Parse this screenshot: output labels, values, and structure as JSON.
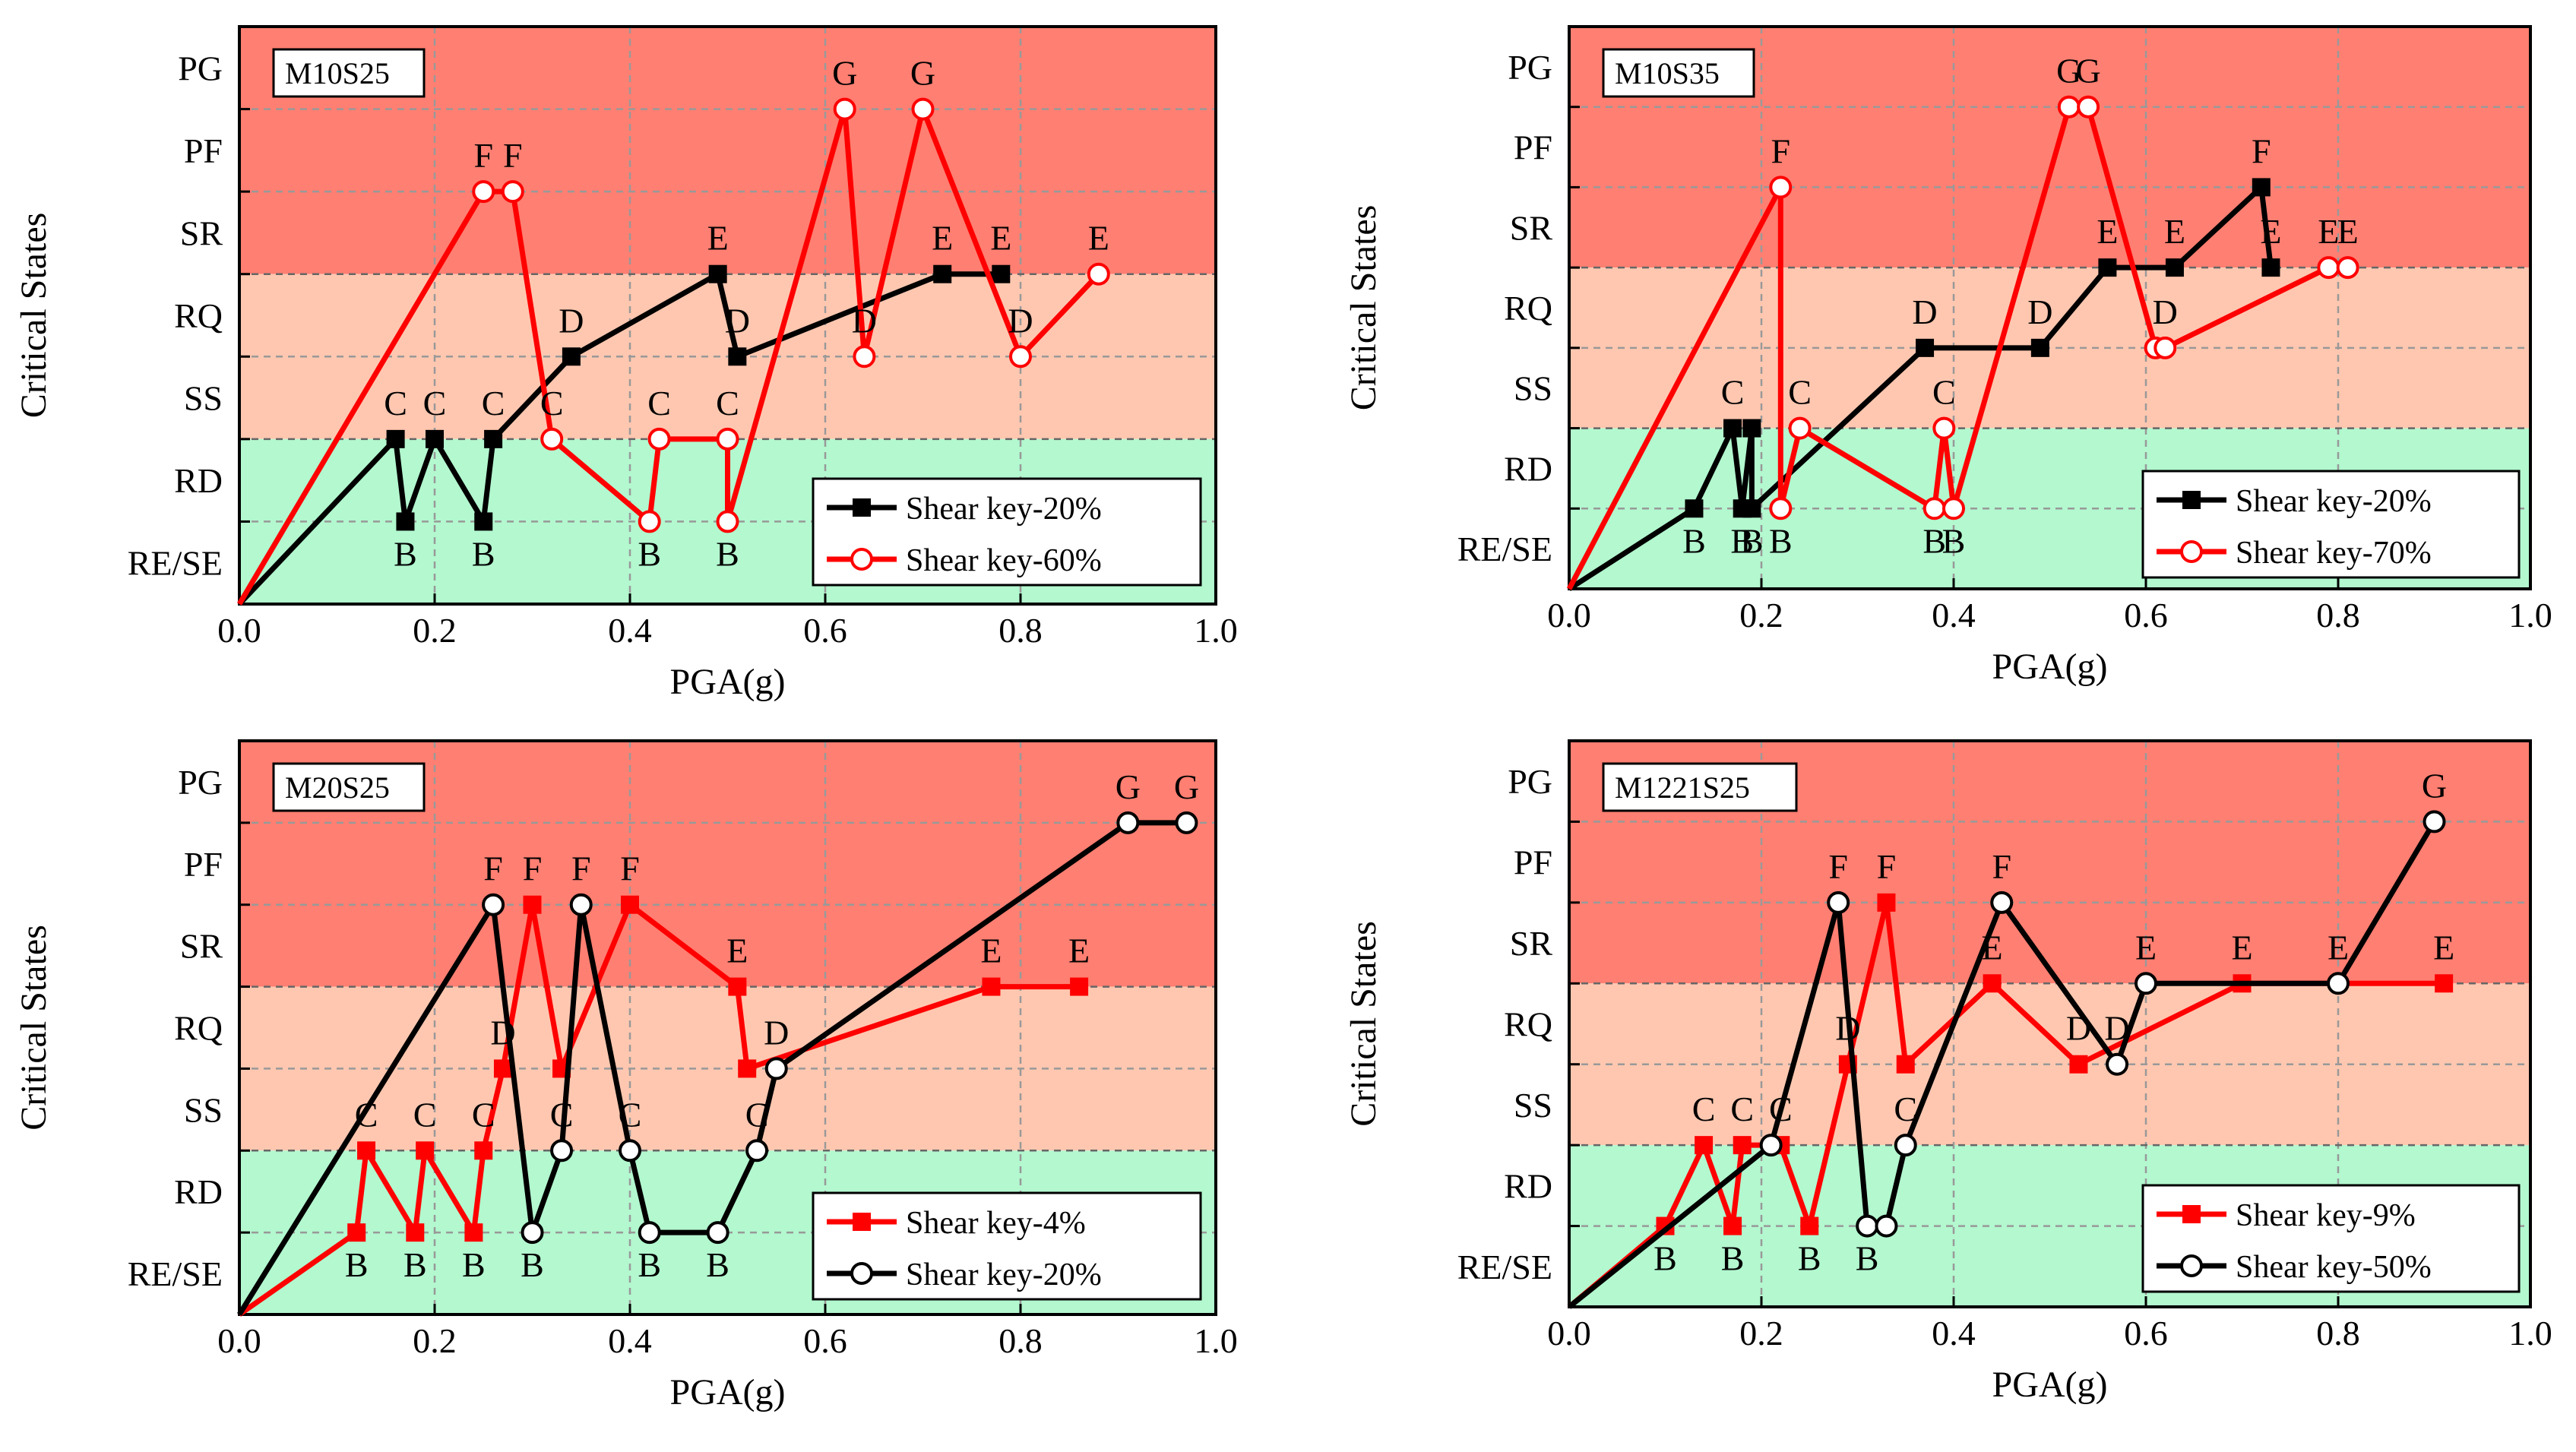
{
  "colors": {
    "band_top": "#ff7f72",
    "band_mid": "#ffc7b0",
    "band_bottom": "#b3f8cf",
    "red": "#ff0000",
    "black": "#000000",
    "grid": "#999999"
  },
  "states": [
    "RE/SE",
    "RD",
    "SS",
    "RQ",
    "SR",
    "PF",
    "PG"
  ],
  "chart_data": [
    {
      "type": "line",
      "title": "M10S25",
      "xlabel": "PGA(g)",
      "ylabel": "Critical States",
      "xlim": [
        0,
        1.0
      ],
      "x_ticks": [
        "0.0",
        "0.2",
        "0.4",
        "0.6",
        "0.8",
        "1.0"
      ],
      "y_ticks": [
        "RE/SE",
        "RD",
        "SS",
        "RQ",
        "SR",
        "PF",
        "PG"
      ],
      "grid": true,
      "legend_position": "bottom-right",
      "series": [
        {
          "name": "Shear key-20%",
          "color": "#000000",
          "marker": "square",
          "x": [
            0,
            0.16,
            0.17,
            0.2,
            0.25,
            0.26,
            0.34,
            0.49,
            0.51,
            0.72,
            0.78
          ],
          "y": [
            0,
            2,
            1,
            2,
            1,
            2,
            3,
            4,
            3,
            4,
            4
          ],
          "labels": [
            "",
            "C",
            "B",
            "C",
            "B",
            "C",
            "D",
            "E",
            "D",
            "E",
            "E"
          ]
        },
        {
          "name": "Shear key-60%",
          "color": "#ff0000",
          "marker": "circle",
          "x": [
            0,
            0.25,
            0.28,
            0.32,
            0.42,
            0.43,
            0.5,
            0.5,
            0.62,
            0.64,
            0.7,
            0.8,
            0.88
          ],
          "y": [
            0,
            5,
            5,
            2,
            1,
            2,
            2,
            1,
            6,
            3,
            6,
            3,
            4
          ],
          "labels": [
            "",
            "F",
            "F",
            "C",
            "B",
            "C",
            "C",
            "B",
            "G",
            "D",
            "G",
            "D",
            "E"
          ]
        }
      ]
    },
    {
      "type": "line",
      "title": "M10S35",
      "xlabel": "PGA(g)",
      "ylabel": "Critical States",
      "xlim": [
        0,
        1.0
      ],
      "x_ticks": [
        "0.0",
        "0.2",
        "0.4",
        "0.6",
        "0.8",
        "1.0"
      ],
      "y_ticks": [
        "RE/SE",
        "RD",
        "SS",
        "RQ",
        "SR",
        "PF",
        "PG"
      ],
      "grid": true,
      "legend_position": "bottom-right",
      "series": [
        {
          "name": "Shear key-20%",
          "color": "#000000",
          "marker": "square",
          "x": [
            0,
            0.13,
            0.17,
            0.18,
            0.19,
            0.19,
            0.37,
            0.49,
            0.56,
            0.63,
            0.72,
            0.73
          ],
          "y": [
            0,
            1,
            2,
            1,
            2,
            1,
            3,
            3,
            4,
            4,
            5,
            4
          ],
          "labels": [
            "",
            "B",
            "C",
            "B",
            "",
            "B",
            "D",
            "D",
            "E",
            "E",
            "F",
            "E"
          ]
        },
        {
          "name": "Shear key-70%",
          "color": "#ff0000",
          "marker": "circle",
          "x": [
            0,
            0.22,
            0.22,
            0.24,
            0.38,
            0.39,
            0.4,
            0.52,
            0.54,
            0.61,
            0.62,
            0.79,
            0.81
          ],
          "y": [
            0,
            5,
            1,
            2,
            1,
            2,
            1,
            6,
            6,
            3,
            3,
            4,
            4
          ],
          "labels": [
            "",
            "F",
            "B",
            "C",
            "B",
            "C",
            "B",
            "G",
            "G",
            "",
            "D",
            "E",
            "E"
          ]
        }
      ]
    },
    {
      "type": "line",
      "title": "M20S25",
      "xlabel": "PGA(g)",
      "ylabel": "Critical States",
      "xlim": [
        0,
        1.0
      ],
      "x_ticks": [
        "0.0",
        "0.2",
        "0.4",
        "0.6",
        "0.8",
        "1.0"
      ],
      "y_ticks": [
        "RE/SE",
        "RD",
        "SS",
        "RQ",
        "SR",
        "PF",
        "PG"
      ],
      "grid": true,
      "legend_position": "bottom-right",
      "series": [
        {
          "name": "Shear key-4%",
          "color": "#ff0000",
          "marker": "square",
          "x": [
            0,
            0.12,
            0.13,
            0.18,
            0.19,
            0.24,
            0.25,
            0.27,
            0.3,
            0.33,
            0.4,
            0.51,
            0.52,
            0.77,
            0.86
          ],
          "y": [
            0,
            1,
            2,
            1,
            2,
            1,
            2,
            3,
            5,
            3,
            5,
            4,
            3,
            4,
            4
          ],
          "labels": [
            "",
            "B",
            "C",
            "B",
            "C",
            "B",
            "C",
            "D",
            "F",
            "",
            "F",
            "E",
            "",
            "E",
            "E"
          ]
        },
        {
          "name": "Shear key-20%",
          "color": "#000000",
          "marker": "circle",
          "x": [
            0,
            0.26,
            0.3,
            0.33,
            0.35,
            0.4,
            0.42,
            0.49,
            0.53,
            0.55,
            0.91,
            0.97
          ],
          "y": [
            0,
            5,
            1,
            2,
            5,
            2,
            1,
            1,
            2,
            3,
            6,
            6
          ],
          "labels": [
            "",
            "F",
            "B",
            "C",
            "F",
            "C",
            "B",
            "B",
            "C",
            "D",
            "G",
            "G"
          ]
        }
      ]
    },
    {
      "type": "line",
      "title": "M1221S25",
      "xlabel": "PGA(g)",
      "ylabel": "Critical States",
      "xlim": [
        0,
        1.0
      ],
      "x_ticks": [
        "0.0",
        "0.2",
        "0.4",
        "0.6",
        "0.8",
        "1.0"
      ],
      "y_ticks": [
        "RE/SE",
        "RD",
        "SS",
        "RQ",
        "SR",
        "PF",
        "PG"
      ],
      "grid": true,
      "legend_position": "bottom-right",
      "series": [
        {
          "name": "Shear key-9%",
          "color": "#ff0000",
          "marker": "square",
          "x": [
            0,
            0.1,
            0.14,
            0.17,
            0.18,
            0.22,
            0.25,
            0.29,
            0.33,
            0.35,
            0.44,
            0.53,
            0.7,
            0.91
          ],
          "y": [
            0,
            1,
            2,
            1,
            2,
            2,
            1,
            3,
            5,
            3,
            4,
            3,
            4,
            4
          ],
          "labels": [
            "",
            "B",
            "C",
            "B",
            "C",
            "C",
            "B",
            "D",
            "F",
            "",
            "E",
            "D",
            "E",
            "E"
          ]
        },
        {
          "name": "Shear key-50%",
          "color": "#000000",
          "marker": "circle",
          "x": [
            0,
            0.21,
            0.28,
            0.31,
            0.33,
            0.35,
            0.45,
            0.57,
            0.6,
            0.8,
            0.9
          ],
          "y": [
            0,
            2,
            5,
            1,
            1,
            2,
            5,
            3,
            4,
            4,
            6
          ],
          "labels": [
            "",
            "",
            "F",
            "B",
            "",
            "C",
            "F",
            "D",
            "E",
            "E",
            "G"
          ]
        }
      ]
    }
  ]
}
